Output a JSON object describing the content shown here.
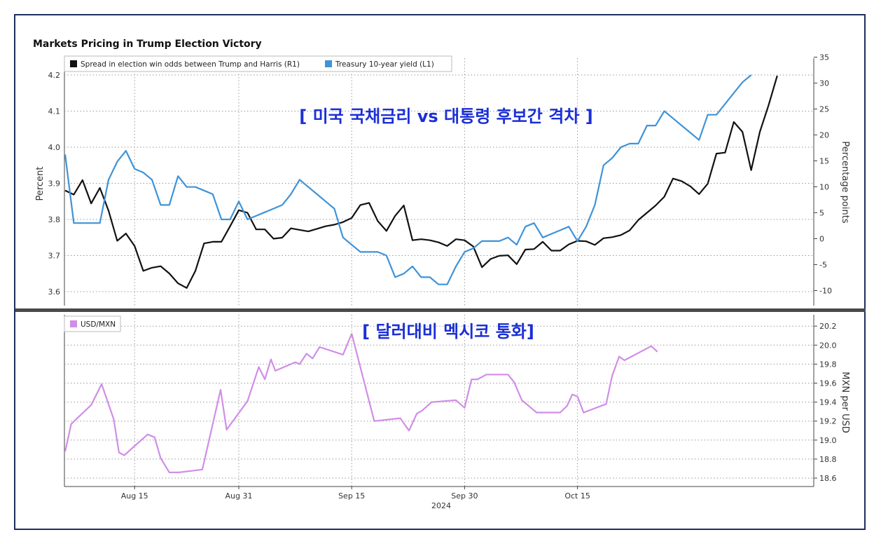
{
  "colors": {
    "spread": "#111111",
    "yield": "#3f93d8",
    "mxn": "#d08ee6",
    "overlay": "#1b2fd6",
    "frame": "#1f2f5c",
    "divider": "#4a4a4a"
  },
  "chart_data": [
    {
      "type": "line",
      "title": "Markets Pricing in Trump Election Victory",
      "overlay_title": "[ 미국 국채금리 vs 대통령 후보간 격차 ]",
      "ylabel_left": "Percent",
      "ylabel_right": "Percentage points",
      "ylim_left": [
        3.57,
        4.25
      ],
      "ylim_right": [
        -14,
        36
      ],
      "yticks_left": [
        3.6,
        3.7,
        3.8,
        3.9,
        4.0,
        4.1,
        4.2
      ],
      "ytick_labels_left": [
        "3.6",
        "3.7",
        "3.8",
        "3.9",
        "4.0",
        "4.1",
        "4.2"
      ],
      "yticks_right": [
        -10,
        -5,
        0,
        5,
        10,
        15,
        20,
        25,
        30,
        35
      ],
      "ytick_labels_right": [
        "-10",
        "-5",
        "0",
        "5",
        "10",
        "15",
        "20",
        "25",
        "30",
        "35"
      ],
      "grid": true,
      "legend_position": "top-left",
      "series": [
        {
          "name": "Spread in election win odds between Trump and Harris (R1)",
          "axis": "right",
          "color": "#111111",
          "points": [
            [
              0,
              9.3
            ],
            [
              1,
              8.5
            ],
            [
              2,
              11.3
            ],
            [
              3,
              6.8
            ],
            [
              4,
              9.8
            ],
            [
              5,
              5.4
            ],
            [
              6,
              -0.4
            ],
            [
              7,
              1.0
            ],
            [
              8,
              -1.4
            ],
            [
              9,
              -6.2
            ],
            [
              10,
              -5.6
            ],
            [
              11,
              -5.3
            ],
            [
              12,
              -6.7
            ],
            [
              13,
              -8.6
            ],
            [
              14,
              -9.5
            ],
            [
              15,
              -6.2
            ],
            [
              16,
              -0.9
            ],
            [
              17,
              -0.6
            ],
            [
              18,
              -0.6
            ],
            [
              19,
              2.4
            ],
            [
              20,
              5.5
            ],
            [
              21,
              5.0
            ],
            [
              22,
              1.8
            ],
            [
              23,
              1.8
            ],
            [
              24,
              0.0
            ],
            [
              25,
              0.2
            ],
            [
              26,
              2.0
            ],
            [
              27,
              1.7
            ],
            [
              28,
              1.4
            ],
            [
              29,
              1.9
            ],
            [
              30,
              2.4
            ],
            [
              31,
              2.7
            ],
            [
              32,
              3.2
            ],
            [
              33,
              4.0
            ],
            [
              34,
              6.5
            ],
            [
              35,
              6.9
            ],
            [
              36,
              3.4
            ],
            [
              37,
              1.5
            ],
            [
              38,
              4.4
            ],
            [
              39,
              6.4
            ],
            [
              40,
              -0.3
            ],
            [
              41,
              -0.1
            ],
            [
              42,
              -0.3
            ],
            [
              43,
              -0.7
            ],
            [
              44,
              -1.4
            ],
            [
              45,
              -0.1
            ],
            [
              46,
              -0.3
            ],
            [
              47,
              -1.5
            ],
            [
              48,
              -5.5
            ],
            [
              49,
              -3.9
            ],
            [
              50,
              -3.3
            ],
            [
              51,
              -3.2
            ],
            [
              52,
              -4.9
            ],
            [
              53,
              -2.1
            ],
            [
              54,
              -2.0
            ],
            [
              55,
              -0.6
            ],
            [
              56,
              -2.3
            ],
            [
              57,
              -2.3
            ],
            [
              58,
              -1.1
            ],
            [
              59,
              -0.4
            ],
            [
              60,
              -0.5
            ],
            [
              61,
              -1.2
            ],
            [
              62,
              0.1
            ],
            [
              63,
              0.3
            ],
            [
              64,
              0.7
            ],
            [
              65,
              1.6
            ],
            [
              66,
              3.6
            ],
            [
              67,
              5.0
            ],
            [
              68,
              6.4
            ],
            [
              69,
              8.1
            ],
            [
              70,
              11.6
            ],
            [
              71,
              11.1
            ],
            [
              72,
              10.1
            ],
            [
              73,
              8.6
            ],
            [
              74,
              10.6
            ],
            [
              75,
              16.4
            ],
            [
              76,
              16.6
            ],
            [
              77,
              22.5
            ],
            [
              78,
              20.6
            ],
            [
              79,
              13.2
            ],
            [
              80,
              20.6
            ],
            [
              81,
              25.7
            ],
            [
              82,
              31.4
            ]
          ]
        },
        {
          "name": "Treasury 10-year yield (L1)",
          "axis": "left",
          "color": "#3f93d8",
          "points": [
            [
              0,
              3.98
            ],
            [
              1,
              3.79
            ],
            [
              2,
              3.79
            ],
            [
              3,
              3.79
            ],
            [
              4,
              3.79
            ],
            [
              5,
              3.91
            ],
            [
              6,
              3.96
            ],
            [
              7,
              3.99
            ],
            [
              8,
              3.94
            ],
            [
              9,
              3.93
            ],
            [
              10,
              3.91
            ],
            [
              11,
              3.84
            ],
            [
              12,
              3.84
            ],
            [
              13,
              3.92
            ],
            [
              14,
              3.89
            ],
            [
              15,
              3.89
            ],
            [
              16,
              3.88
            ],
            [
              17,
              3.87
            ],
            [
              18,
              3.8
            ],
            [
              19,
              3.8
            ],
            [
              20,
              3.85
            ],
            [
              21,
              3.8
            ],
            [
              22,
              3.81
            ],
            [
              23,
              3.82
            ],
            [
              24,
              3.83
            ],
            [
              25,
              3.84
            ],
            [
              26,
              3.87
            ],
            [
              27,
              3.91
            ],
            [
              28,
              3.89
            ],
            [
              29,
              3.87
            ],
            [
              30,
              3.85
            ],
            [
              31,
              3.83
            ],
            [
              32,
              3.75
            ],
            [
              33,
              3.73
            ],
            [
              34,
              3.71
            ],
            [
              35,
              3.71
            ],
            [
              36,
              3.71
            ],
            [
              37,
              3.7
            ],
            [
              38,
              3.64
            ],
            [
              39,
              3.65
            ],
            [
              40,
              3.67
            ],
            [
              41,
              3.64
            ],
            [
              42,
              3.64
            ],
            [
              43,
              3.62
            ],
            [
              44,
              3.62
            ],
            [
              45,
              3.67
            ],
            [
              46,
              3.71
            ],
            [
              47,
              3.72
            ],
            [
              48,
              3.74
            ],
            [
              49,
              3.74
            ],
            [
              50,
              3.74
            ],
            [
              51,
              3.75
            ],
            [
              52,
              3.73
            ],
            [
              53,
              3.78
            ],
            [
              54,
              3.79
            ],
            [
              55,
              3.75
            ],
            [
              56,
              3.76
            ],
            [
              57,
              3.77
            ],
            [
              58,
              3.78
            ],
            [
              59,
              3.74
            ],
            [
              60,
              3.78
            ],
            [
              61,
              3.84
            ],
            [
              62,
              3.95
            ],
            [
              63,
              3.97
            ],
            [
              64,
              4.0
            ],
            [
              65,
              4.01
            ],
            [
              66,
              4.01
            ],
            [
              67,
              4.06
            ],
            [
              68,
              4.06
            ],
            [
              69,
              4.1
            ],
            [
              70,
              4.08
            ],
            [
              71,
              4.06
            ],
            [
              72,
              4.04
            ],
            [
              73,
              4.02
            ],
            [
              74,
              4.09
            ],
            [
              75,
              4.09
            ],
            [
              76,
              4.12
            ],
            [
              77,
              4.15
            ],
            [
              78,
              4.18
            ],
            [
              79,
              4.2
            ]
          ]
        }
      ]
    },
    {
      "type": "line",
      "overlay_title": "[ 달러대비 멕시코 통화]",
      "ylabel_right": "MXN per USD",
      "ylim": [
        18.55,
        20.28
      ],
      "yticks": [
        18.6,
        18.8,
        19.0,
        19.2,
        19.4,
        19.6,
        19.8,
        20.0,
        20.2
      ],
      "ytick_labels": [
        "18.6",
        "18.8",
        "19.0",
        "19.2",
        "19.4",
        "19.6",
        "19.8",
        "20.0",
        "20.2"
      ],
      "xticks": [
        8,
        20,
        33,
        46,
        59
      ],
      "xtick_labels": [
        "Aug 15",
        "Aug 31",
        "Sep 15",
        "Sep 30",
        "Oct 15"
      ],
      "xlabel": "2024",
      "grid": true,
      "legend_position": "top-left",
      "series": [
        {
          "name": "USD/MXN",
          "color": "#d08ee6",
          "points": [
            [
              0,
              18.88
            ],
            [
              0.7,
              19.17
            ],
            [
              3,
              19.37
            ],
            [
              4.2,
              19.59
            ],
            [
              5.6,
              19.22
            ],
            [
              6.2,
              18.87
            ],
            [
              6.8,
              18.84
            ],
            [
              9.5,
              19.06
            ],
            [
              10.3,
              19.03
            ],
            [
              11,
              18.81
            ],
            [
              12,
              18.66
            ],
            [
              13.1,
              18.66
            ],
            [
              15.8,
              18.69
            ],
            [
              17.9,
              19.53
            ],
            [
              18.6,
              19.11
            ],
            [
              21,
              19.41
            ],
            [
              22.3,
              19.77
            ],
            [
              23,
              19.64
            ],
            [
              23.7,
              19.85
            ],
            [
              24.2,
              19.73
            ],
            [
              26.5,
              19.82
            ],
            [
              27,
              19.8
            ],
            [
              27.8,
              19.91
            ],
            [
              28.5,
              19.86
            ],
            [
              29.3,
              19.98
            ],
            [
              32,
              19.9
            ],
            [
              33,
              20.12
            ],
            [
              35.6,
              19.2
            ],
            [
              38.6,
              19.23
            ],
            [
              39.6,
              19.1
            ],
            [
              40.5,
              19.28
            ],
            [
              41.1,
              19.31
            ],
            [
              42.2,
              19.4
            ],
            [
              45,
              19.42
            ],
            [
              46,
              19.34
            ],
            [
              46.8,
              19.64
            ],
            [
              47.5,
              19.64
            ],
            [
              48.5,
              19.69
            ],
            [
              51,
              19.69
            ],
            [
              51.7,
              19.61
            ],
            [
              52.6,
              19.42
            ],
            [
              54.3,
              19.29
            ],
            [
              57,
              19.29
            ],
            [
              57.8,
              19.36
            ],
            [
              58.4,
              19.48
            ],
            [
              59,
              19.46
            ],
            [
              59.7,
              19.29
            ],
            [
              62.3,
              19.38
            ],
            [
              63,
              19.68
            ],
            [
              63.8,
              19.88
            ],
            [
              64.4,
              19.84
            ],
            [
              67.5,
              19.99
            ],
            [
              68.2,
              19.93
            ]
          ]
        }
      ]
    }
  ]
}
